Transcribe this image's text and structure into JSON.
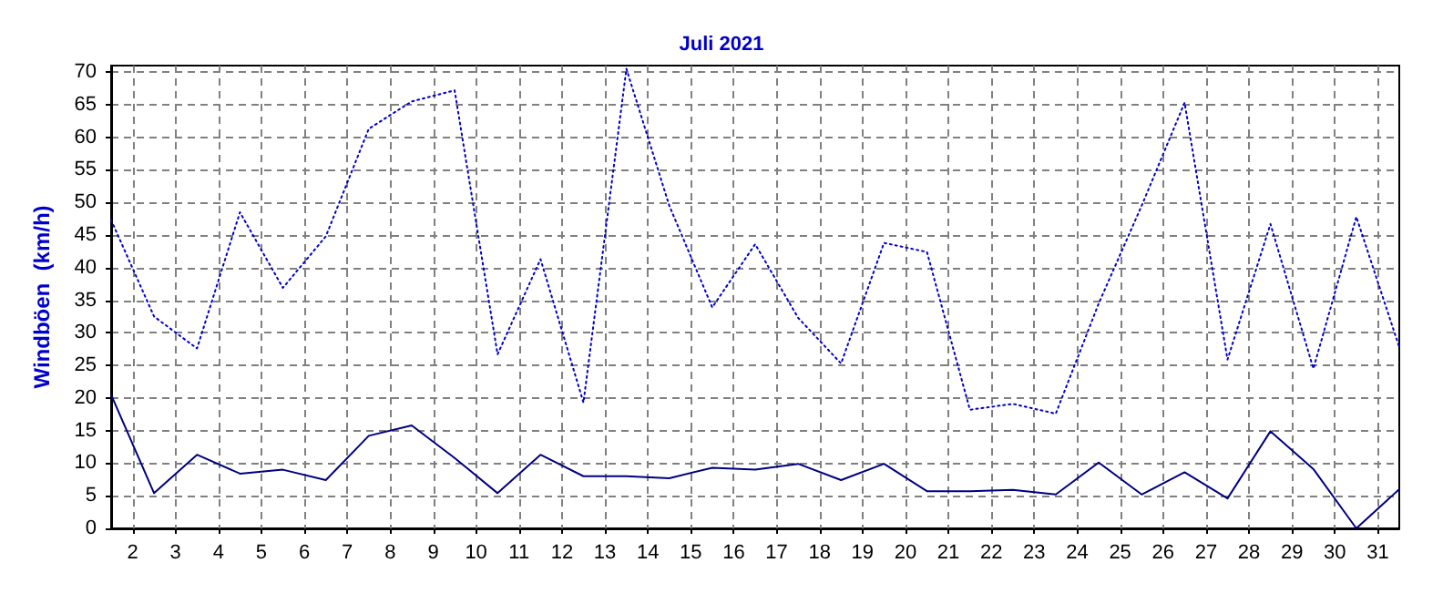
{
  "chart_data": {
    "type": "line",
    "title": "Juli 2021",
    "ylabel": "Windböen  (km/h)",
    "x": [
      1.5,
      2.5,
      3.5,
      4.5,
      5.5,
      6.5,
      7.5,
      8.5,
      9.5,
      10.5,
      11.5,
      12.5,
      13.5,
      14.5,
      15.5,
      16.5,
      17.5,
      18.5,
      19.5,
      20.5,
      21.5,
      22.5,
      23.5,
      24.5,
      25.5,
      26.5,
      27.5,
      28.5,
      29.5,
      30.5,
      31.5
    ],
    "series": [
      {
        "color": "#0000cc",
        "line_style": "dotted",
        "values": [
          47.3,
          32.5,
          27.6,
          48.5,
          36.9,
          44.8,
          61.3,
          65.5,
          67.2,
          26.7,
          41.3,
          19.3,
          70.5,
          49.5,
          33.9,
          43.6,
          32.3,
          25.3,
          43.8,
          42.4,
          18.2,
          19.1,
          17.6,
          34.5,
          49.5,
          65.3,
          25.9,
          46.7,
          24.5,
          47.8,
          27.8
        ]
      },
      {
        "color": "#000080",
        "line_style": "solid",
        "values": [
          20.5,
          5.4,
          11.3,
          8.4,
          9.0,
          7.4,
          14.2,
          15.8,
          10.8,
          5.4,
          11.3,
          8.0,
          8.0,
          7.7,
          9.3,
          9.0,
          9.9,
          7.4,
          9.9,
          5.7,
          5.7,
          5.9,
          5.2,
          10.1,
          5.2,
          8.6,
          4.6,
          14.9,
          9.1,
          0,
          6.0
        ]
      }
    ],
    "xlim": [
      1.5,
      31.5
    ],
    "xticks": [
      2,
      3,
      4,
      5,
      6,
      7,
      8,
      9,
      10,
      11,
      12,
      13,
      14,
      15,
      16,
      17,
      18,
      19,
      20,
      21,
      22,
      23,
      24,
      25,
      26,
      27,
      28,
      29,
      30,
      31
    ],
    "ylim": [
      0,
      71
    ],
    "yticks": [
      0,
      5,
      10,
      15,
      20,
      25,
      30,
      35,
      40,
      45,
      50,
      55,
      60,
      65,
      70
    ],
    "grid": true,
    "marker": "none"
  }
}
